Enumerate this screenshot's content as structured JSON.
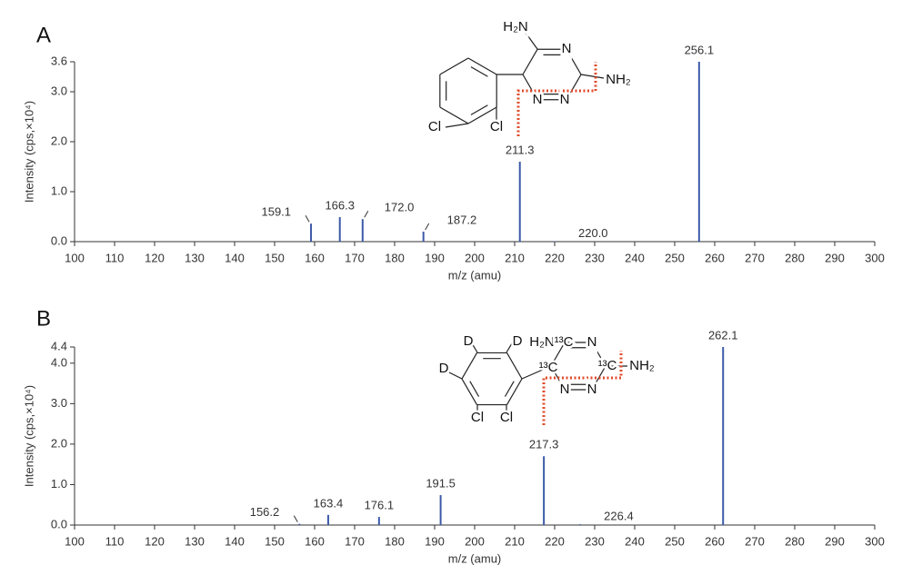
{
  "chart_data": [
    {
      "type": "stem",
      "panel_label": "A",
      "color": "#3c5aa8",
      "x": [
        159.1,
        166.3,
        172.0,
        187.2,
        211.3,
        220.0,
        256.1
      ],
      "x_labels": [
        "159.1",
        "166.3",
        "172.0",
        "187.2",
        "211.3",
        "220.0",
        "256.1"
      ],
      "values": [
        0.36,
        0.49,
        0.45,
        0.2,
        1.6,
        0.01,
        3.6
      ],
      "xlim": [
        100,
        300
      ],
      "xticks": [
        100,
        110,
        120,
        130,
        140,
        150,
        160,
        170,
        180,
        190,
        200,
        210,
        220,
        230,
        240,
        250,
        260,
        270,
        280,
        290,
        300
      ],
      "ylim": [
        0,
        3.6
      ],
      "yticks": [
        {
          "value": 0,
          "label": "0.0"
        },
        {
          "value": 1,
          "label": "1.0"
        },
        {
          "value": 2,
          "label": "2.0"
        },
        {
          "value": 3,
          "label": "3.0"
        },
        3.6
      ],
      "xlabel": "m/z (amu)",
      "ylabel": "Intensity (cps,×10⁴)",
      "structure_labels": [
        "H₂N",
        "N",
        "NH₂",
        "N",
        "N",
        "Cl",
        "Cl"
      ]
    },
    {
      "type": "stem",
      "panel_label": "B",
      "color": "#3c5aa8",
      "x": [
        156.2,
        163.4,
        176.1,
        191.5,
        217.3,
        226.4,
        262.1
      ],
      "x_labels": [
        "156.2",
        "163.4",
        "176.1",
        "191.5",
        "217.3",
        "226.4",
        "262.1"
      ],
      "values": [
        0.03,
        0.25,
        0.2,
        0.74,
        1.7,
        0.02,
        4.4
      ],
      "xlim": [
        100,
        300
      ],
      "xticks": [
        100,
        110,
        120,
        130,
        140,
        150,
        160,
        170,
        180,
        190,
        200,
        210,
        220,
        230,
        240,
        250,
        260,
        270,
        280,
        290,
        300
      ],
      "ylim": [
        0,
        4.4
      ],
      "yticks": [
        {
          "value": 0,
          "label": "0.0"
        },
        {
          "value": 1,
          "label": "1.0"
        },
        {
          "value": 2,
          "label": "2.0"
        },
        {
          "value": 3,
          "label": "3.0"
        },
        {
          "value": 4,
          "label": "4.0"
        },
        4.4
      ],
      "xlabel": "m/z (amu)",
      "ylabel": "Intensity (cps,×10⁴)",
      "structure_labels": [
        "D",
        "D",
        "D",
        "H₂N",
        "¹³C",
        "N",
        "¹³C",
        "NH₂",
        "¹³C",
        "N",
        "N",
        "Cl",
        "Cl"
      ]
    }
  ]
}
